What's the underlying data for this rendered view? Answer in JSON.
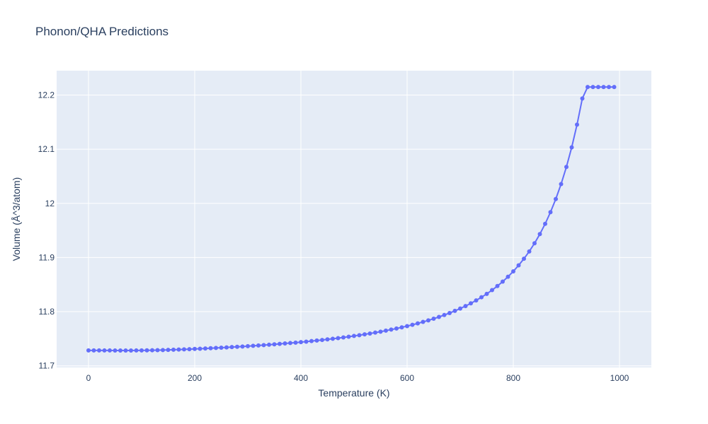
{
  "chart_data": {
    "type": "line",
    "title": "Phonon/QHA Predictions",
    "xlabel": "Temperature (K)",
    "ylabel": "Volume (Å^3/atom)",
    "xlim": [
      -60,
      1060
    ],
    "ylim": [
      11.697,
      12.245
    ],
    "xticks": [
      "0",
      "200",
      "400",
      "600",
      "800",
      "1000"
    ],
    "yticks": [
      "11.7",
      "11.8",
      "11.9",
      "12",
      "12.1",
      "12.2"
    ],
    "grid": true,
    "colors": {
      "line": "#636efa",
      "plot_bg": "#e5ecf6",
      "grid": "#ffffff",
      "text": "#2a3f5f"
    },
    "series": [
      {
        "x": [
          0,
          10,
          20,
          30,
          40,
          50,
          60,
          70,
          80,
          90,
          100,
          110,
          120,
          130,
          140,
          150,
          160,
          170,
          180,
          190,
          200,
          210,
          220,
          230,
          240,
          250,
          260,
          270,
          280,
          290,
          300,
          310,
          320,
          330,
          340,
          350,
          360,
          370,
          380,
          390,
          400,
          410,
          420,
          430,
          440,
          450,
          460,
          470,
          480,
          490,
          500,
          510,
          520,
          530,
          540,
          550,
          560,
          570,
          580,
          590,
          600,
          610,
          620,
          630,
          640,
          650,
          660,
          670,
          680,
          690,
          700,
          710,
          720,
          730,
          740,
          750,
          760,
          770,
          780,
          790,
          800,
          810,
          820,
          830,
          840,
          850,
          860,
          870,
          880,
          890,
          900,
          910,
          920,
          930,
          940,
          950,
          960,
          970,
          980,
          990
        ],
        "y": [
          11.7285,
          11.7285,
          11.7285,
          11.7284,
          11.7284,
          11.7283,
          11.7283,
          11.7283,
          11.7283,
          11.7284,
          11.7285,
          11.7286,
          11.7288,
          11.729,
          11.7292,
          11.7295,
          11.7298,
          11.7301,
          11.7305,
          11.7308,
          11.7312,
          11.7316,
          11.7321,
          11.7325,
          11.733,
          11.7335,
          11.734,
          11.7346,
          11.7351,
          11.7357,
          11.7363,
          11.737,
          11.7376,
          11.7383,
          11.739,
          11.7397,
          11.7405,
          11.7413,
          11.7421,
          11.7429,
          11.7438,
          11.7447,
          11.7457,
          11.7467,
          11.7478,
          11.7489,
          11.75,
          11.7512,
          11.7525,
          11.7538,
          11.7552,
          11.7566,
          11.7581,
          11.7597,
          11.7614,
          11.7631,
          11.765,
          11.7669,
          11.7689,
          11.7711,
          11.7734,
          11.7758,
          11.7784,
          11.7811,
          11.784,
          11.787,
          11.7903,
          11.7938,
          11.7975,
          11.8015,
          11.8058,
          11.8104,
          11.8154,
          11.8208,
          11.8266,
          11.8329,
          11.8398,
          11.8473,
          11.8555,
          11.8645,
          11.8745,
          11.8855,
          11.8977,
          11.9112,
          11.9263,
          11.9432,
          11.9622,
          11.9837,
          12.008,
          12.0356,
          12.0672,
          12.1035,
          12.1453,
          12.1937,
          12.2148,
          12.2148,
          12.2148,
          12.2148,
          12.2148,
          12.2148
        ]
      }
    ]
  }
}
